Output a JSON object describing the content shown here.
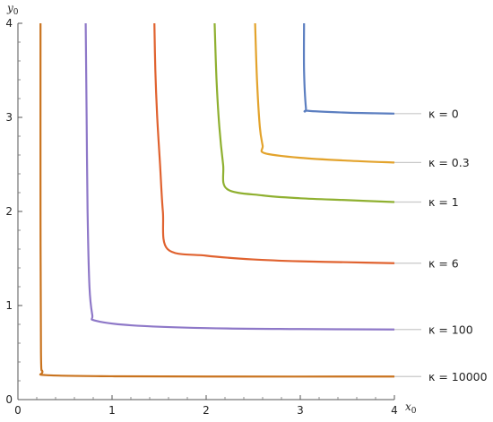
{
  "chart_data": {
    "type": "line",
    "xlabel": "x",
    "xlabel_sub": "0",
    "ylabel": "y",
    "ylabel_sub": "0",
    "xlim": [
      0,
      4
    ],
    "ylim": [
      0,
      4
    ],
    "x_ticks": [
      0,
      1,
      2,
      3,
      4
    ],
    "y_ticks": [
      0,
      1,
      2,
      3,
      4
    ],
    "grid": false,
    "legend": "right, inline labels at curve ends",
    "series": [
      {
        "name": "κ = 0",
        "color": "#5b7ec0",
        "values": [
          [
            3.04,
            4.0
          ],
          [
            3.04,
            3.5
          ],
          [
            3.06,
            3.1
          ],
          [
            3.08,
            3.07
          ],
          [
            3.5,
            3.05
          ],
          [
            4.0,
            3.04
          ]
        ]
      },
      {
        "name": "κ = 0.3",
        "color": "#e3a32c",
        "values": [
          [
            2.52,
            4.0
          ],
          [
            2.54,
            3.4
          ],
          [
            2.57,
            2.9
          ],
          [
            2.6,
            2.7
          ],
          [
            2.62,
            2.62
          ],
          [
            3.0,
            2.57
          ],
          [
            3.5,
            2.54
          ],
          [
            4.0,
            2.52
          ]
        ]
      },
      {
        "name": "κ = 1",
        "color": "#8fb030",
        "values": [
          [
            2.09,
            4.0
          ],
          [
            2.11,
            3.4
          ],
          [
            2.14,
            2.9
          ],
          [
            2.18,
            2.5
          ],
          [
            2.22,
            2.24
          ],
          [
            2.6,
            2.17
          ],
          [
            3.0,
            2.14
          ],
          [
            3.5,
            2.12
          ],
          [
            4.0,
            2.1
          ]
        ]
      },
      {
        "name": "κ = 6",
        "color": "#e0622f",
        "values": [
          [
            1.45,
            4.0
          ],
          [
            1.46,
            3.5
          ],
          [
            1.48,
            3.0
          ],
          [
            1.51,
            2.5
          ],
          [
            1.54,
            2.0
          ],
          [
            1.59,
            1.6
          ],
          [
            2.0,
            1.53
          ],
          [
            2.5,
            1.49
          ],
          [
            3.0,
            1.47
          ],
          [
            3.5,
            1.46
          ],
          [
            4.0,
            1.45
          ]
        ]
      },
      {
        "name": "κ = 100",
        "color": "#8e78c8",
        "values": [
          [
            0.72,
            4.0
          ],
          [
            0.73,
            3.0
          ],
          [
            0.74,
            2.0
          ],
          [
            0.76,
            1.2
          ],
          [
            0.79,
            0.9
          ],
          [
            0.82,
            0.84
          ],
          [
            1.2,
            0.79
          ],
          [
            2.0,
            0.76
          ],
          [
            3.0,
            0.75
          ],
          [
            4.0,
            0.745
          ]
        ]
      },
      {
        "name": "κ = 10000",
        "color": "#c9731e",
        "values": [
          [
            0.24,
            4.0
          ],
          [
            0.24,
            2.0
          ],
          [
            0.245,
            0.5
          ],
          [
            0.26,
            0.3
          ],
          [
            0.3,
            0.26
          ],
          [
            1.0,
            0.248
          ],
          [
            2.0,
            0.245
          ],
          [
            4.0,
            0.245
          ]
        ]
      }
    ]
  }
}
